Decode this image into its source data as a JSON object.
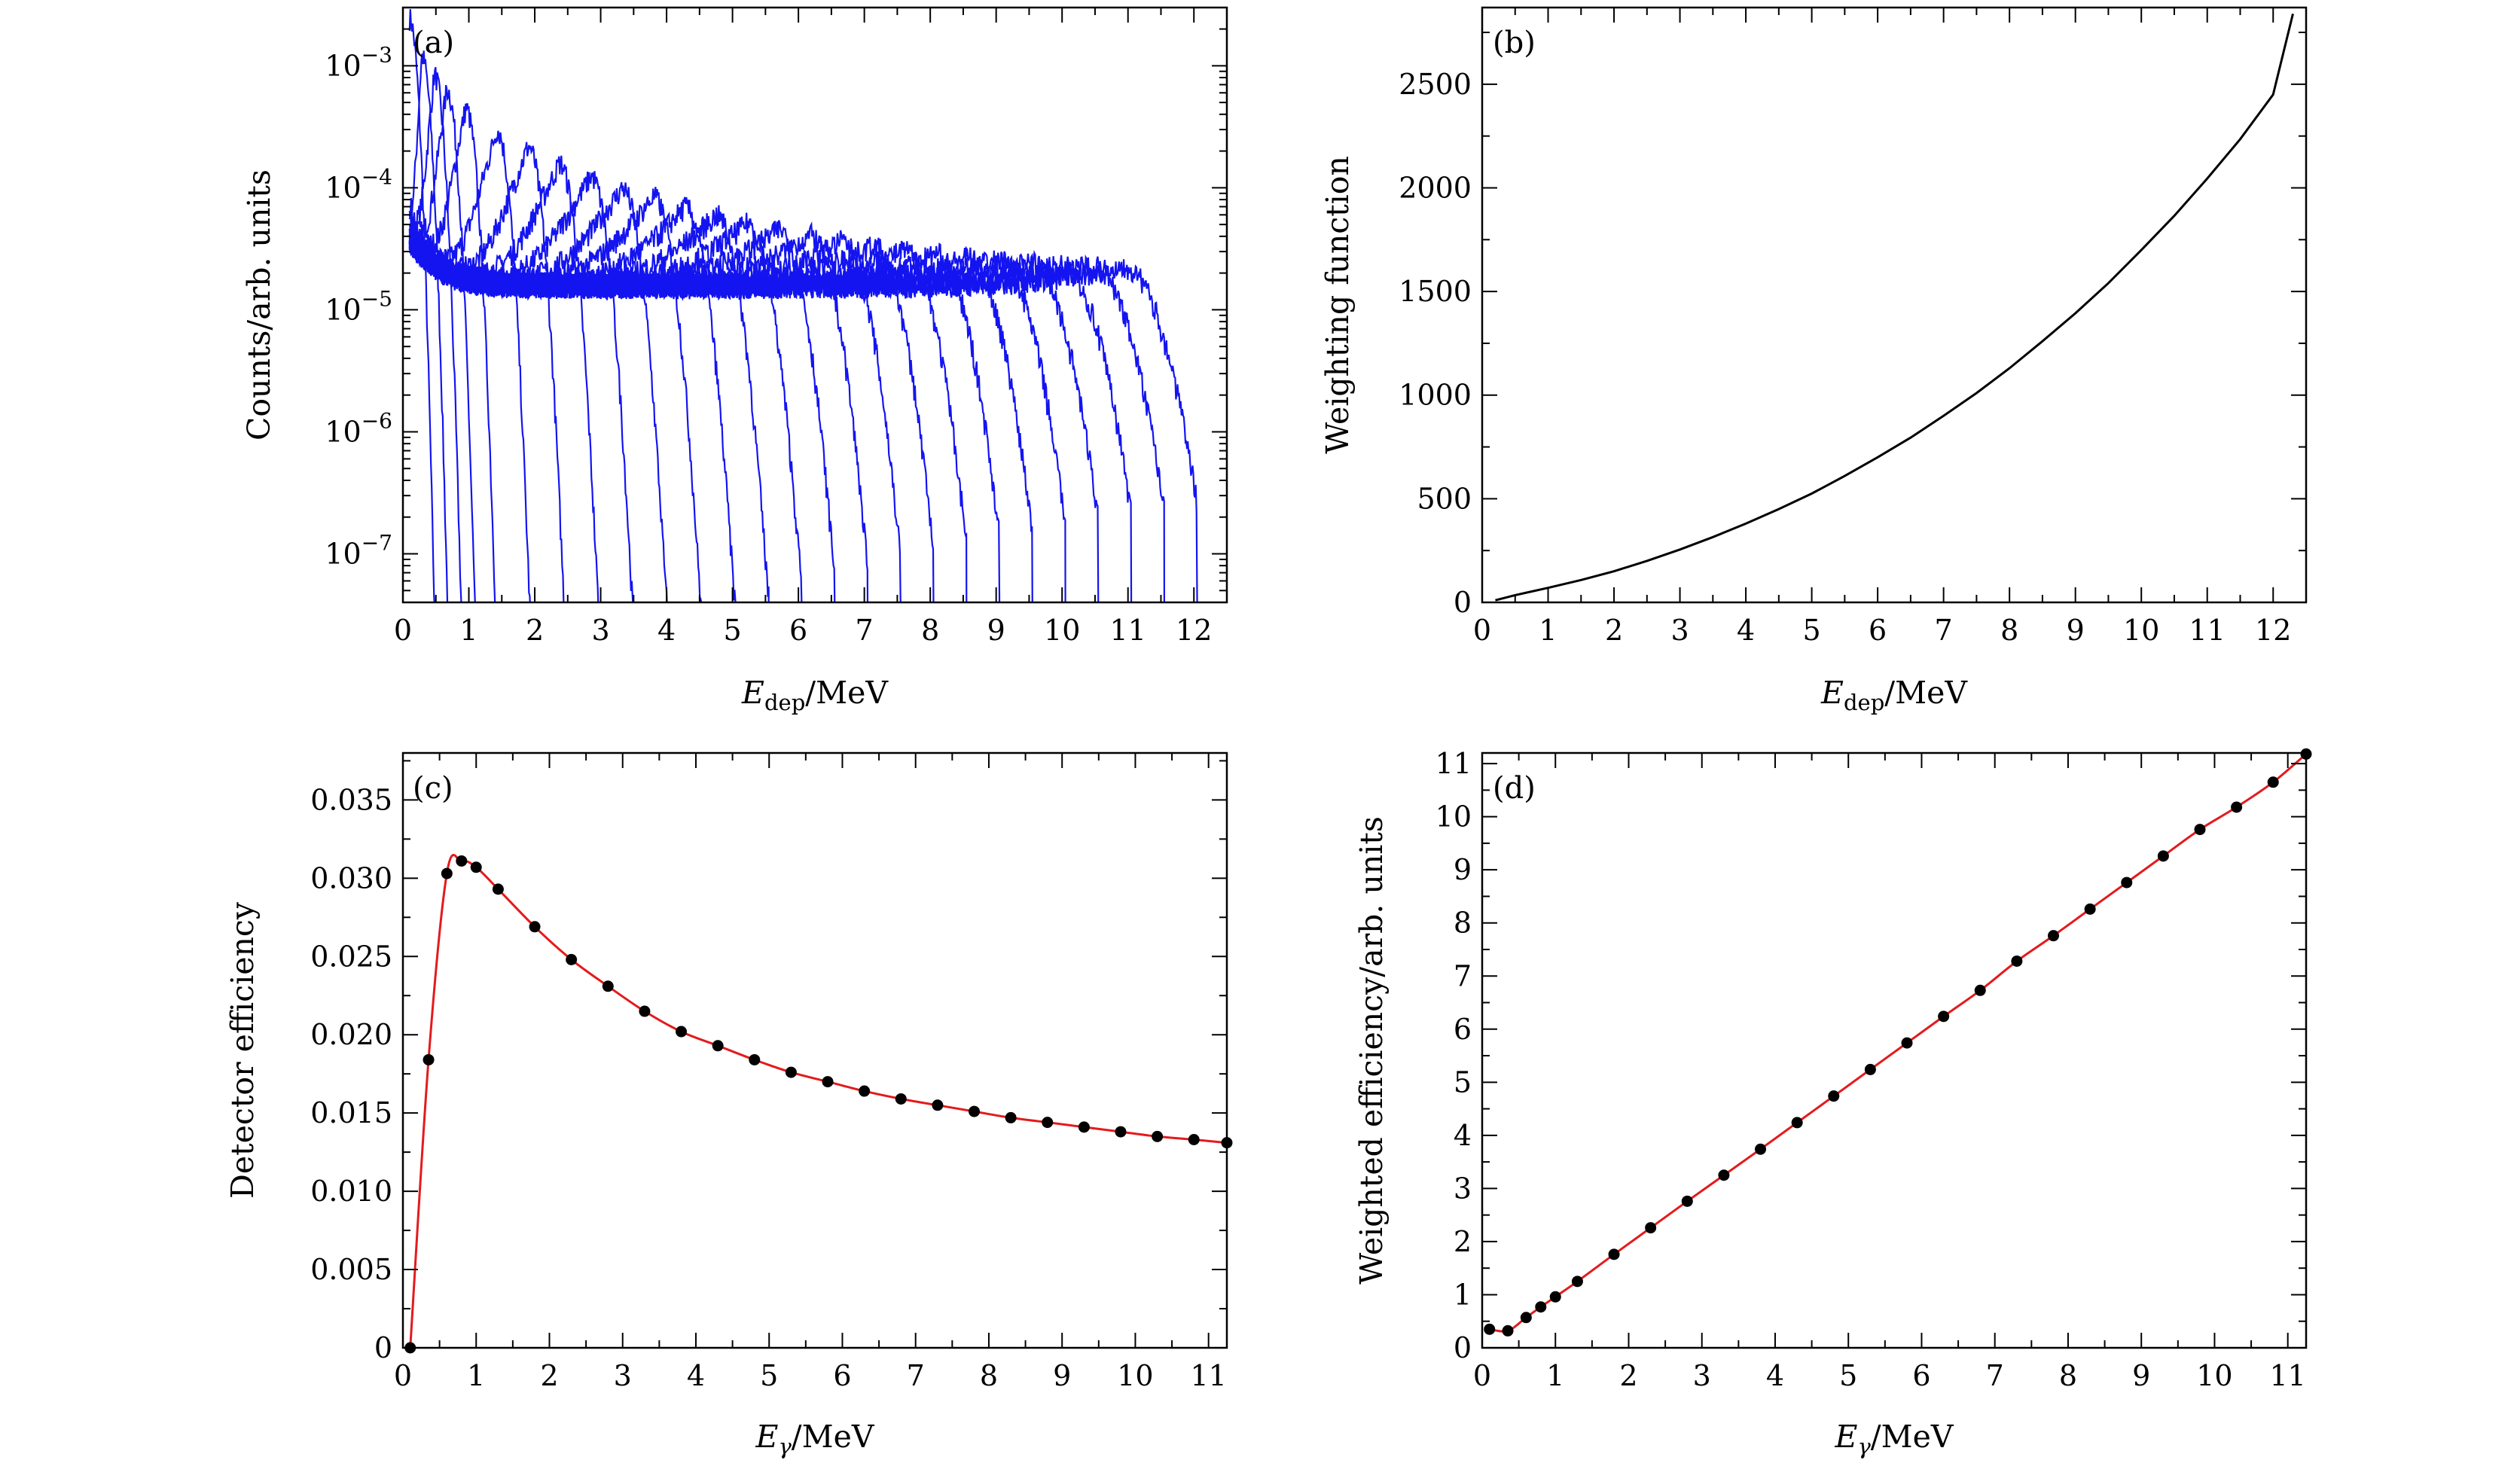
{
  "figure": {
    "background": "#ffffff",
    "colors": {
      "spectra": "#1414f0",
      "weighting": "#000000",
      "fit": "#e41a1c",
      "points": "#000000"
    }
  },
  "chart_data": [
    {
      "panel": "a",
      "type": "line",
      "panel_label": "(a)",
      "xlabel_main": "E",
      "xlabel_sub": "dep",
      "xlabel_unit": "/MeV",
      "ylabel": "Counts/arb. units",
      "xlim": [
        0,
        12.5
      ],
      "ylim": [
        4e-08,
        0.003
      ],
      "yscale": "log",
      "xticks": [
        0,
        1,
        2,
        3,
        4,
        5,
        6,
        7,
        8,
        9,
        10,
        11,
        12
      ],
      "yticks": [
        {
          "value": 1e-07,
          "label_base": "10",
          "label_exp": "−7"
        },
        {
          "value": 1e-06,
          "label_base": "10",
          "label_exp": "−6"
        },
        {
          "value": 1e-05,
          "label_base": "10",
          "label_exp": "−5"
        },
        {
          "value": 0.0001,
          "label_base": "10",
          "label_exp": "−4"
        },
        {
          "value": 0.001,
          "label_base": "10",
          "label_exp": "−3"
        }
      ],
      "series_description": "simulated deposited-energy response spectra, one per incident gamma energy",
      "incident_energies": [
        0.1,
        0.3,
        0.5,
        0.7,
        1.0,
        1.5,
        2.0,
        2.5,
        3.0,
        3.5,
        4.0,
        4.5,
        5.0,
        5.5,
        6.0,
        6.5,
        7.0,
        7.5,
        8.0,
        8.5,
        9.0,
        9.5,
        10.0,
        10.5,
        11.0,
        11.5
      ],
      "compton_edge_peak_heights": [
        0.0025,
        0.0012,
        0.00085,
        0.00065,
        0.00045,
        0.0003,
        0.00022,
        0.00016,
        0.000125,
        0.0001,
        8.5e-05,
        7e-05,
        6e-05,
        5.2e-05,
        4.6e-05,
        4.1e-05,
        3.7e-05,
        3.4e-05,
        3.1e-05,
        2.9e-05,
        2.7e-05,
        2.6e-05,
        2.5e-05,
        2.4e-05,
        2.3e-05,
        2.3e-05
      ],
      "continuum_level": 1.5e-05
    },
    {
      "panel": "b",
      "type": "line",
      "panel_label": "(b)",
      "xlabel_main": "E",
      "xlabel_sub": "dep",
      "xlabel_unit": "/MeV",
      "ylabel": "Weighting function",
      "xlim": [
        0,
        12.5
      ],
      "ylim": [
        0,
        2870
      ],
      "xticks": [
        0,
        1,
        2,
        3,
        4,
        5,
        6,
        7,
        8,
        9,
        10,
        11,
        12
      ],
      "yticks": [
        0,
        500,
        1000,
        1500,
        2000,
        2500
      ],
      "x": [
        0.2,
        0.5,
        1,
        1.5,
        2,
        2.5,
        3,
        3.5,
        4,
        4.5,
        5,
        5.5,
        6,
        6.5,
        7,
        7.5,
        8,
        8.5,
        9,
        9.5,
        10,
        10.5,
        11,
        11.5,
        12,
        12.3
      ],
      "y": [
        10,
        35,
        70,
        108,
        150,
        200,
        255,
        315,
        380,
        450,
        525,
        610,
        700,
        795,
        900,
        1010,
        1130,
        1260,
        1395,
        1540,
        1700,
        1865,
        2045,
        2235,
        2450,
        2840
      ]
    },
    {
      "panel": "c",
      "type": "scatter",
      "panel_label": "(c)",
      "xlabel_main": "E",
      "xlabel_sub": "γ",
      "xlabel_unit": "/MeV",
      "ylabel": "Detector efficiency",
      "xlim": [
        0,
        11.25
      ],
      "ylim": [
        0,
        0.038
      ],
      "xticks": [
        0,
        1,
        2,
        3,
        4,
        5,
        6,
        7,
        8,
        9,
        10,
        11
      ],
      "yticks": [
        {
          "value": 0,
          "label": "0"
        },
        {
          "value": 0.005,
          "label": "0.005"
        },
        {
          "value": 0.01,
          "label": "0.010"
        },
        {
          "value": 0.015,
          "label": "0.015"
        },
        {
          "value": 0.02,
          "label": "0.020"
        },
        {
          "value": 0.025,
          "label": "0.025"
        },
        {
          "value": 0.03,
          "label": "0.030"
        },
        {
          "value": 0.035,
          "label": "0.035"
        }
      ],
      "x": [
        0.1,
        0.35,
        0.6,
        0.8,
        1.0,
        1.3,
        1.8,
        2.3,
        2.8,
        3.3,
        3.8,
        4.3,
        4.8,
        5.3,
        5.8,
        6.3,
        6.8,
        7.3,
        7.8,
        8.3,
        8.8,
        9.3,
        9.8,
        10.3,
        10.8,
        11.25
      ],
      "y": [
        0.0,
        0.0184,
        0.0303,
        0.0311,
        0.0307,
        0.0293,
        0.0269,
        0.0248,
        0.0231,
        0.0215,
        0.0202,
        0.0193,
        0.0184,
        0.0176,
        0.017,
        0.0164,
        0.0159,
        0.0155,
        0.0151,
        0.0147,
        0.0144,
        0.0141,
        0.0138,
        0.0135,
        0.0133,
        0.0131
      ]
    },
    {
      "panel": "d",
      "type": "scatter",
      "panel_label": "(d)",
      "xlabel_main": "E",
      "xlabel_sub": "γ",
      "xlabel_unit": "/MeV",
      "ylabel": "Weighted efficiency/arb. units",
      "xlim": [
        0,
        11.25
      ],
      "ylim": [
        0,
        11.2
      ],
      "xticks": [
        0,
        1,
        2,
        3,
        4,
        5,
        6,
        7,
        8,
        9,
        10,
        11
      ],
      "yticks": [
        0,
        1,
        2,
        3,
        4,
        5,
        6,
        7,
        8,
        9,
        10,
        11
      ],
      "x": [
        0.1,
        0.35,
        0.6,
        0.8,
        1.0,
        1.3,
        1.8,
        2.3,
        2.8,
        3.3,
        3.8,
        4.3,
        4.8,
        5.3,
        5.8,
        6.3,
        6.8,
        7.3,
        7.8,
        8.3,
        8.8,
        9.3,
        9.8,
        10.3,
        10.8,
        11.25
      ],
      "y": [
        0.35,
        0.32,
        0.57,
        0.77,
        0.96,
        1.25,
        1.76,
        2.26,
        2.76,
        3.25,
        3.74,
        4.24,
        4.74,
        5.24,
        5.74,
        6.24,
        6.73,
        7.28,
        7.76,
        8.26,
        8.76,
        9.26,
        9.76,
        10.18,
        10.65,
        11.18
      ]
    }
  ]
}
